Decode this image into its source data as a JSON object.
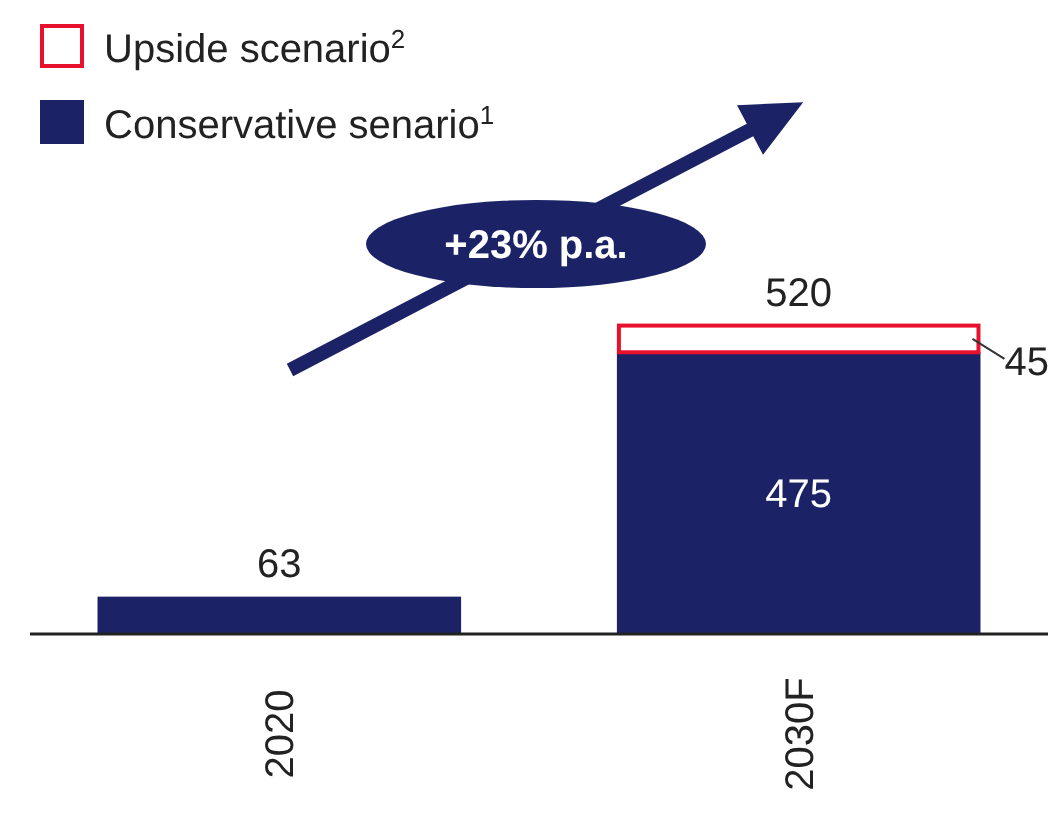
{
  "chart_data": {
    "type": "bar",
    "stacked": true,
    "categories": [
      "2020",
      "2030F"
    ],
    "series": [
      {
        "name": "Conservative senario$^{1}$",
        "color": "#1b2366",
        "values": [
          63,
          475
        ]
      },
      {
        "name": "Upside scenario$^{2}$",
        "color": "#e8112d",
        "values": [
          null,
          45
        ]
      }
    ],
    "data_labels": true,
    "totals": [
      null,
      "520"
    ],
    "legend": "top left",
    "annotations": [
      "+23% p.a."
    ]
  }
}
